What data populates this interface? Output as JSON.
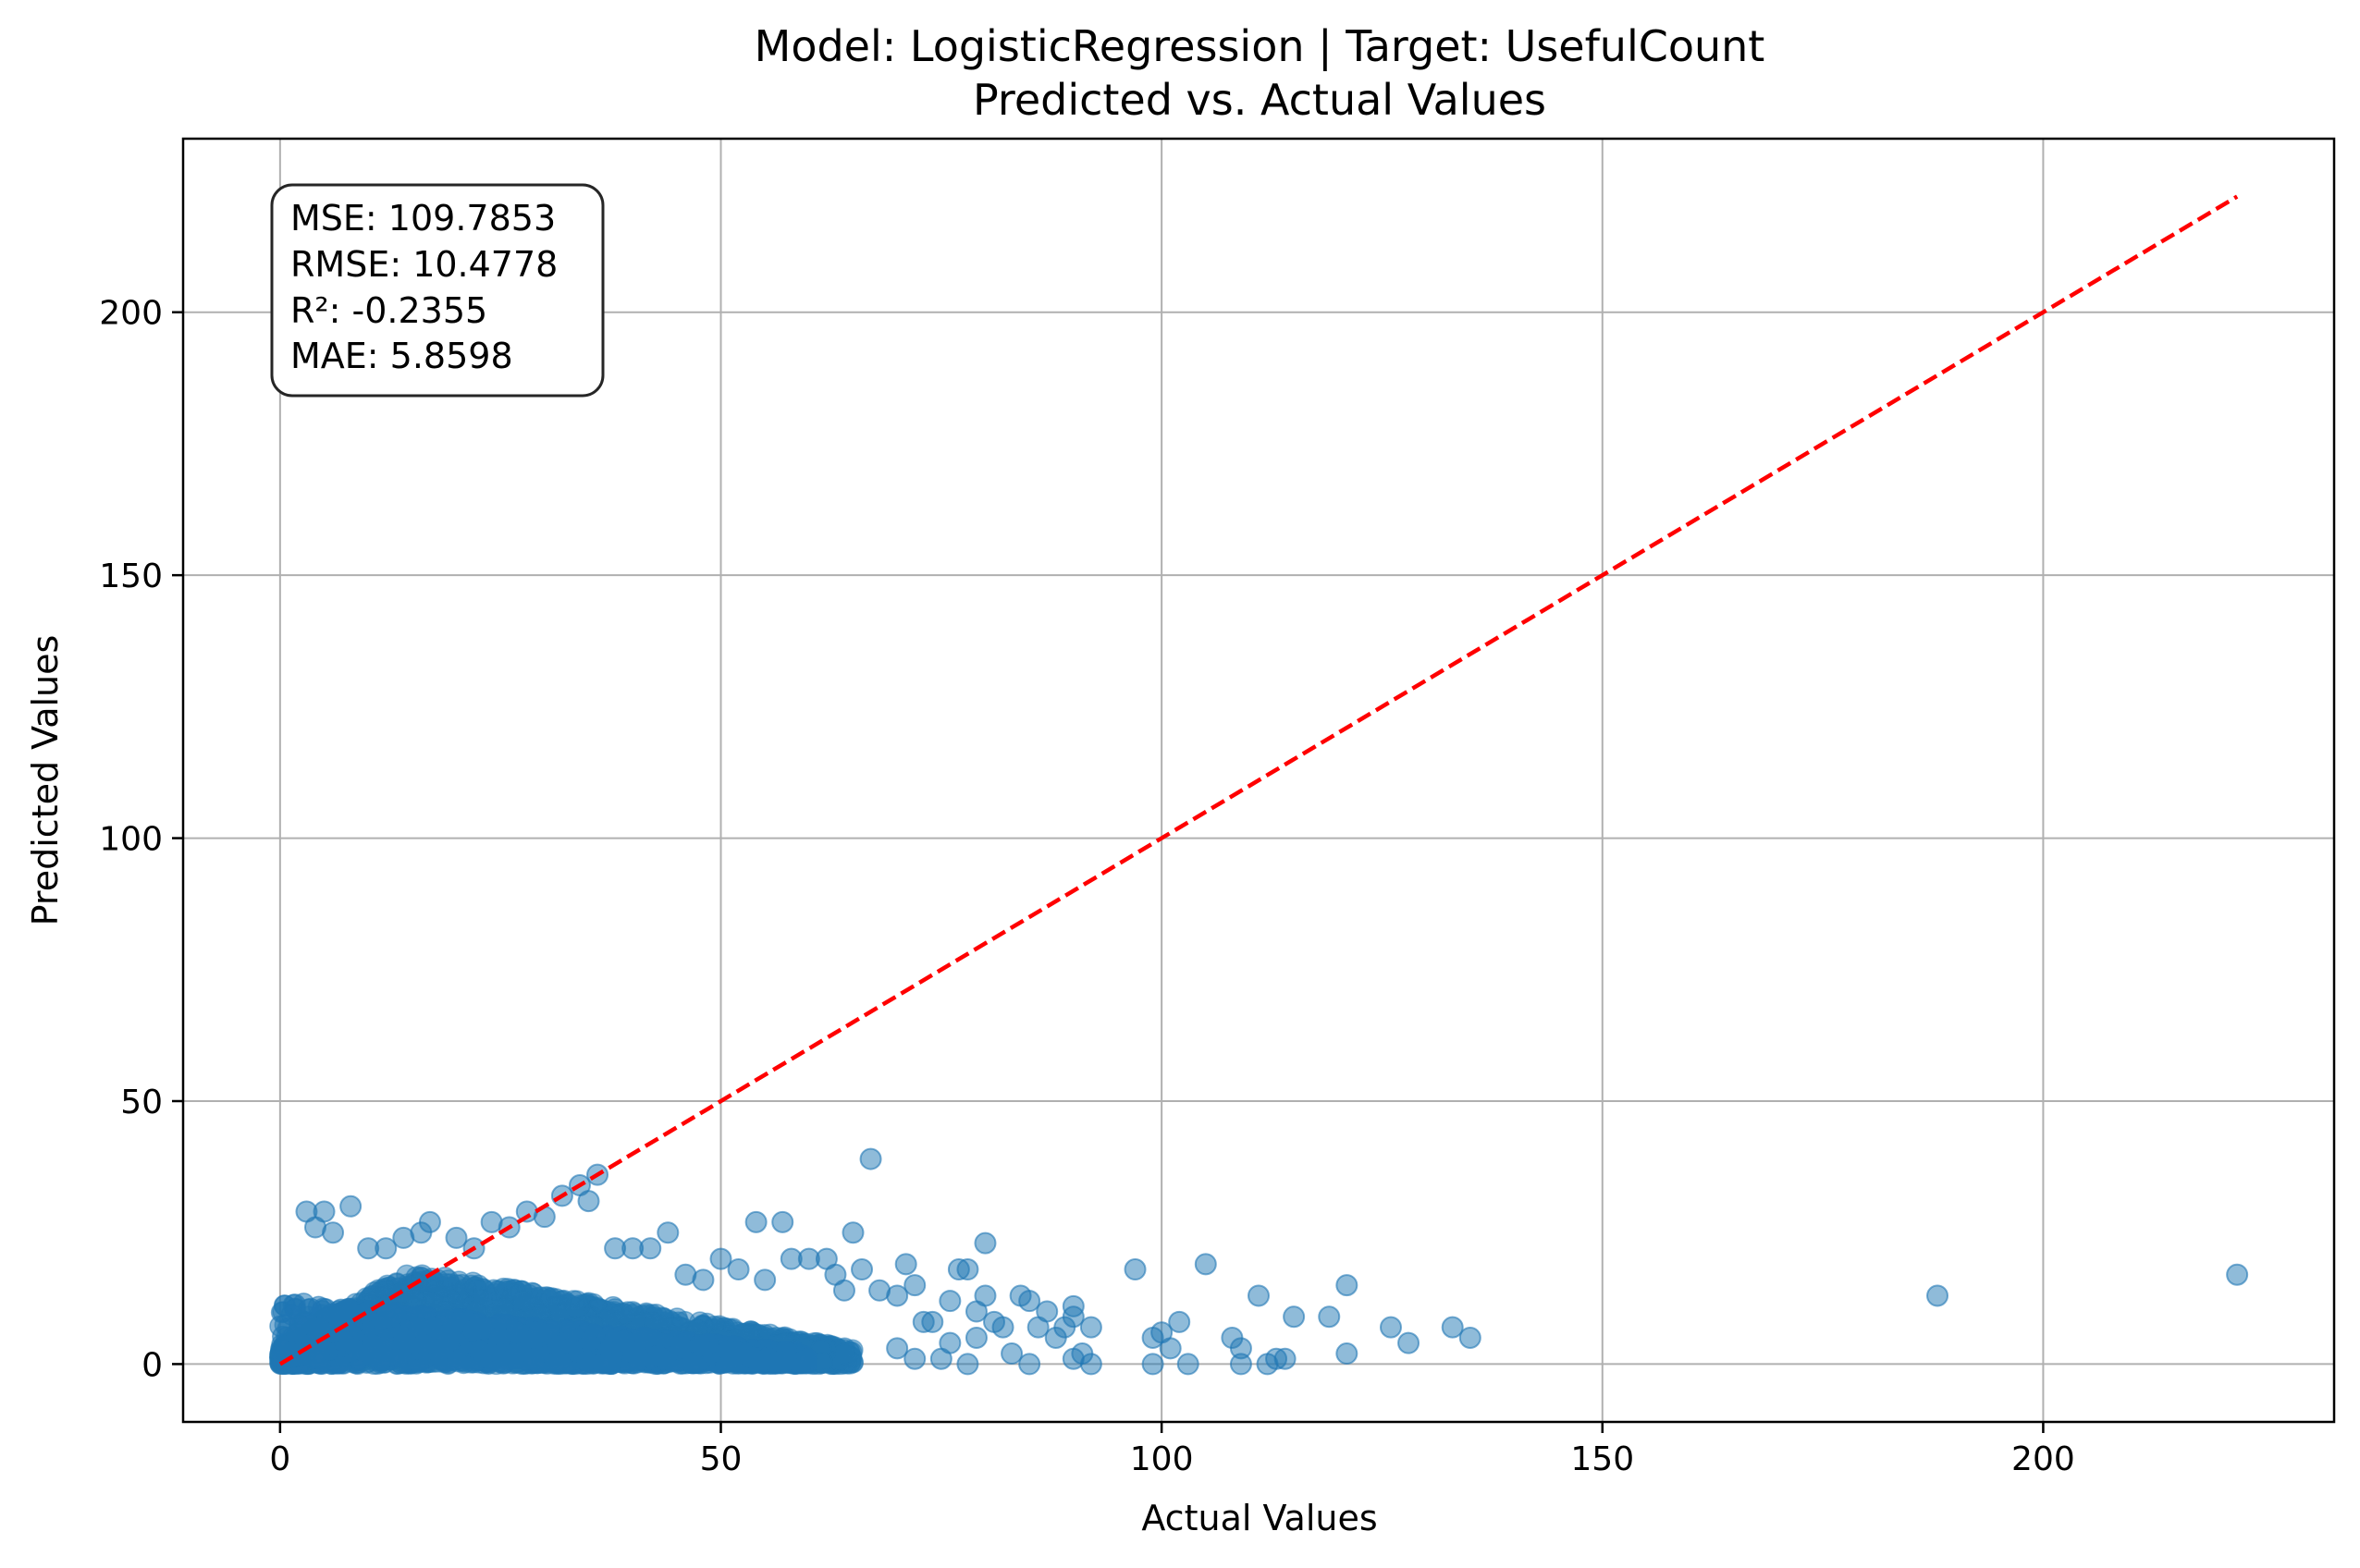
{
  "chart_data": {
    "type": "scatter",
    "title": "Model: LogisticRegression | Target: UsefulCount",
    "subtitle": "Predicted vs. Actual Values",
    "xlabel": "Actual Values",
    "ylabel": "Predicted Values",
    "xlim": [
      -11,
      233
    ],
    "ylim": [
      -11,
      233
    ],
    "xticks": [
      0,
      50,
      100,
      150,
      200
    ],
    "yticks": [
      0,
      50,
      100,
      150,
      200
    ],
    "xtick_labels": [
      "0",
      "50",
      "100",
      "150",
      "200"
    ],
    "ytick_labels": [
      "0",
      "50",
      "100",
      "150",
      "200"
    ],
    "grid": true,
    "colors": {
      "points": "#1f77b4",
      "ideal_line": "#ff0000",
      "grid": "#b0b0b0"
    },
    "ideal_line": {
      "from": [
        0,
        0
      ],
      "to": [
        222,
        222
      ],
      "style": "dashed"
    },
    "stats": [
      "MSE: 109.7853",
      "RMSE: 10.4778",
      "R²: -0.2355",
      "MAE: 5.8598"
    ],
    "dense_region": {
      "x_max": 65,
      "y_max": 22,
      "note": "dense cluster of points below the diagonal"
    },
    "outliers": [
      [
        3,
        29
      ],
      [
        5,
        29
      ],
      [
        4,
        26
      ],
      [
        6,
        25
      ],
      [
        8,
        30
      ],
      [
        10,
        22
      ],
      [
        12,
        22
      ],
      [
        14,
        24
      ],
      [
        16,
        25
      ],
      [
        17,
        27
      ],
      [
        20,
        24
      ],
      [
        22,
        22
      ],
      [
        24,
        27
      ],
      [
        26,
        26
      ],
      [
        28,
        29
      ],
      [
        30,
        28
      ],
      [
        32,
        32
      ],
      [
        34,
        34
      ],
      [
        35,
        31
      ],
      [
        36,
        36
      ],
      [
        38,
        22
      ],
      [
        40,
        22
      ],
      [
        42,
        22
      ],
      [
        44,
        25
      ],
      [
        46,
        17
      ],
      [
        48,
        16
      ],
      [
        50,
        20
      ],
      [
        52,
        18
      ],
      [
        54,
        27
      ],
      [
        55,
        16
      ],
      [
        57,
        27
      ],
      [
        58,
        20
      ],
      [
        60,
        20
      ],
      [
        62,
        20
      ],
      [
        63,
        17
      ],
      [
        64,
        14
      ],
      [
        65,
        25
      ],
      [
        66,
        18
      ],
      [
        67,
        39
      ],
      [
        68,
        14
      ],
      [
        70,
        13
      ],
      [
        71,
        19
      ],
      [
        72,
        15
      ],
      [
        73,
        8
      ],
      [
        74,
        8
      ],
      [
        76,
        12
      ],
      [
        77,
        18
      ],
      [
        78,
        18
      ],
      [
        79,
        10
      ],
      [
        80,
        23
      ],
      [
        80,
        13
      ],
      [
        81,
        8
      ],
      [
        82,
        7
      ],
      [
        84,
        13
      ],
      [
        85,
        12
      ],
      [
        86,
        7
      ],
      [
        87,
        10
      ],
      [
        88,
        5
      ],
      [
        89,
        7
      ],
      [
        90,
        11
      ],
      [
        90,
        9
      ],
      [
        91,
        2
      ],
      [
        92,
        7
      ],
      [
        90,
        1
      ],
      [
        92,
        0
      ],
      [
        97,
        18
      ],
      [
        99,
        5
      ],
      [
        100,
        6
      ],
      [
        101,
        3
      ],
      [
        102,
        8
      ],
      [
        99,
        0
      ],
      [
        103,
        0
      ],
      [
        105,
        19
      ],
      [
        108,
        5
      ],
      [
        109,
        3
      ],
      [
        109,
        0
      ],
      [
        111,
        13
      ],
      [
        112,
        0
      ],
      [
        113,
        1
      ],
      [
        114,
        1
      ],
      [
        115,
        9
      ],
      [
        119,
        9
      ],
      [
        121,
        15
      ],
      [
        121,
        2
      ],
      [
        126,
        7
      ],
      [
        128,
        4
      ],
      [
        133,
        7
      ],
      [
        135,
        5
      ],
      [
        188,
        13
      ],
      [
        222,
        17
      ],
      [
        75,
        1
      ],
      [
        78,
        0
      ],
      [
        83,
        2
      ],
      [
        85,
        0
      ],
      [
        70,
        3
      ],
      [
        72,
        1
      ],
      [
        76,
        4
      ],
      [
        79,
        5
      ]
    ]
  }
}
